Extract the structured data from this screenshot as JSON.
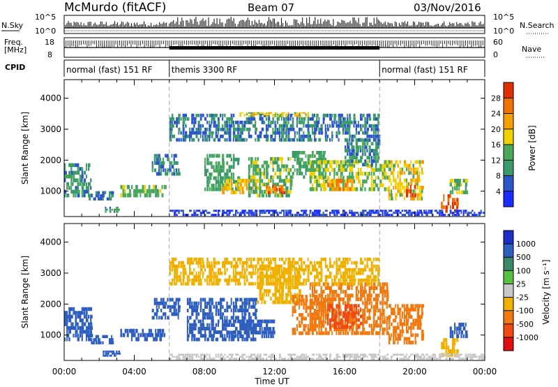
{
  "header": {
    "title": "McMurdo (fitACF)",
    "beam": "Beam 07",
    "date": "03/Nov/2016"
  },
  "top_panels": {
    "nsky_label": "N.Sky",
    "nsearch_label": "N.Search",
    "count_tick_top": "10^5",
    "count_tick_bottom": "10^0",
    "freq_label_1": "Freq.",
    "freq_label_2": "[MHz]",
    "freq_tick_top": "18",
    "freq_tick_bottom": "8",
    "nave_label": "Nave",
    "nave_tick_top": "60",
    "nave_tick_bottom": "0",
    "cpid_label": "CPID",
    "cpid_segments": [
      {
        "label": "normal (fast) 151 RF",
        "start_h": 0,
        "end_h": 6
      },
      {
        "label": "themis 3300 RF",
        "start_h": 6,
        "end_h": 18
      },
      {
        "label": "normal (fast) 151 RF",
        "start_h": 18,
        "end_h": 24
      }
    ]
  },
  "colorbars": {
    "power": {
      "label": "Power [dB]",
      "ticks": [
        "4",
        "8",
        "12",
        "16",
        "20",
        "24",
        "28"
      ],
      "colors": [
        "#1a2cff",
        "#2a56c8",
        "#3a9a6a",
        "#4aa85a",
        "#f2d000",
        "#f5a000",
        "#f07000",
        "#e03000"
      ]
    },
    "velocity": {
      "label": "Velocity [m s⁻¹]",
      "ticks": [
        "1000",
        "500",
        "100",
        "25",
        "-25",
        "-100",
        "-500",
        "-1000"
      ],
      "colors": [
        "#1b2fc8",
        "#2e5fc0",
        "#3a8a6a",
        "#58c040",
        "#c8c8c8",
        "#f0b000",
        "#f07a10",
        "#f04a10",
        "#e01010"
      ]
    }
  },
  "chart_data": [
    {
      "type": "heatmap",
      "title": "Power",
      "ylabel": "Slant Range [km]",
      "xlabel": "Time UT",
      "x_ticks": [
        "00:00",
        "04:00",
        "08:00",
        "12:00",
        "16:00",
        "20:00",
        "00:00"
      ],
      "y_ticks": [
        1000,
        2000,
        3000,
        4000
      ],
      "ylim": [
        180,
        4600
      ],
      "xlim_hours": [
        0,
        24
      ],
      "zlim": [
        0,
        30
      ],
      "patches": [
        {
          "t0": 0.0,
          "t1": 1.6,
          "r0": 800,
          "r1": 1900,
          "v": 10
        },
        {
          "t0": 1.4,
          "t1": 2.8,
          "r0": 700,
          "r1": 1000,
          "v": 8
        },
        {
          "t0": 2.2,
          "t1": 3.2,
          "r0": 300,
          "r1": 500,
          "v": 10
        },
        {
          "t0": 3.2,
          "t1": 5.8,
          "r0": 800,
          "r1": 1200,
          "v": 14
        },
        {
          "t0": 5.0,
          "t1": 6.6,
          "r0": 1500,
          "r1": 2200,
          "v": 8
        },
        {
          "t0": 8.0,
          "t1": 10.0,
          "r0": 1000,
          "r1": 2200,
          "v": 12
        },
        {
          "t0": 9.0,
          "t1": 11.0,
          "r0": 900,
          "r1": 1400,
          "v": 20
        },
        {
          "t0": 10.5,
          "t1": 13.0,
          "r0": 800,
          "r1": 2100,
          "v": 14
        },
        {
          "t0": 11.5,
          "t1": 12.6,
          "r0": 900,
          "r1": 1200,
          "v": 26
        },
        {
          "t0": 13.0,
          "t1": 15.0,
          "r0": 1400,
          "r1": 2300,
          "v": 12
        },
        {
          "t0": 14.0,
          "t1": 18.5,
          "r0": 1000,
          "r1": 2000,
          "v": 16
        },
        {
          "t0": 15.0,
          "t1": 16.5,
          "r0": 1000,
          "r1": 1400,
          "v": 24
        },
        {
          "t0": 16.0,
          "t1": 18.0,
          "r0": 1800,
          "r1": 2700,
          "v": 10
        },
        {
          "t0": 18.5,
          "t1": 20.5,
          "r0": 700,
          "r1": 2000,
          "v": 18
        },
        {
          "t0": 19.5,
          "t1": 20.2,
          "r0": 800,
          "r1": 1200,
          "v": 26
        },
        {
          "t0": 21.5,
          "t1": 22.5,
          "r0": 300,
          "r1": 900,
          "v": 28
        },
        {
          "t0": 22.0,
          "t1": 23.0,
          "r0": 900,
          "r1": 1400,
          "v": 14
        },
        {
          "t0": 6.0,
          "t1": 24.0,
          "r0": 200,
          "r1": 400,
          "v": 4
        },
        {
          "t0": 6.0,
          "t1": 18.0,
          "r0": 2600,
          "r1": 3500,
          "v": 8
        },
        {
          "t0": 10.0,
          "t1": 14.0,
          "r0": 3400,
          "r1": 3550,
          "v": 18
        }
      ]
    },
    {
      "type": "heatmap",
      "title": "Velocity",
      "ylabel": "Slant Range [km]",
      "xlabel": "Time UT",
      "x_ticks": [
        "00:00",
        "04:00",
        "08:00",
        "12:00",
        "16:00",
        "20:00",
        "00:00"
      ],
      "y_ticks": [
        1000,
        2000,
        3000,
        4000
      ],
      "ylim": [
        180,
        4600
      ],
      "xlim_hours": [
        0,
        24
      ],
      "zlim": [
        -1000,
        1000
      ],
      "patches": [
        {
          "t0": 0.0,
          "t1": 1.6,
          "r0": 800,
          "r1": 1900,
          "v": 150
        },
        {
          "t0": 1.4,
          "t1": 2.8,
          "r0": 700,
          "r1": 1000,
          "v": 150
        },
        {
          "t0": 2.2,
          "t1": 3.2,
          "r0": 300,
          "r1": 500,
          "v": 150
        },
        {
          "t0": 3.2,
          "t1": 5.8,
          "r0": 800,
          "r1": 1200,
          "v": 150
        },
        {
          "t0": 5.0,
          "t1": 6.6,
          "r0": 1500,
          "r1": 2200,
          "v": 150
        },
        {
          "t0": 7.0,
          "t1": 11.0,
          "r0": 800,
          "r1": 2200,
          "v": 150
        },
        {
          "t0": 9.0,
          "t1": 12.0,
          "r0": 900,
          "r1": 1500,
          "v": 300
        },
        {
          "t0": 11.0,
          "t1": 13.5,
          "r0": 2000,
          "r1": 3200,
          "v": -60
        },
        {
          "t0": 13.0,
          "t1": 15.0,
          "r0": 1000,
          "r1": 2300,
          "v": -300
        },
        {
          "t0": 14.0,
          "t1": 18.5,
          "r0": 1000,
          "r1": 2700,
          "v": -300
        },
        {
          "t0": 15.0,
          "t1": 17.0,
          "r0": 1200,
          "r1": 2000,
          "v": -700
        },
        {
          "t0": 18.5,
          "t1": 20.5,
          "r0": 700,
          "r1": 2000,
          "v": -150
        },
        {
          "t0": 21.5,
          "t1": 22.5,
          "r0": 300,
          "r1": 900,
          "v": -60
        },
        {
          "t0": 22.0,
          "t1": 23.0,
          "r0": 900,
          "r1": 1400,
          "v": 150
        },
        {
          "t0": 6.0,
          "t1": 24.0,
          "r0": 200,
          "r1": 400,
          "v": 0
        },
        {
          "t0": 6.0,
          "t1": 18.0,
          "r0": 2600,
          "r1": 3500,
          "v": -60
        }
      ]
    }
  ]
}
